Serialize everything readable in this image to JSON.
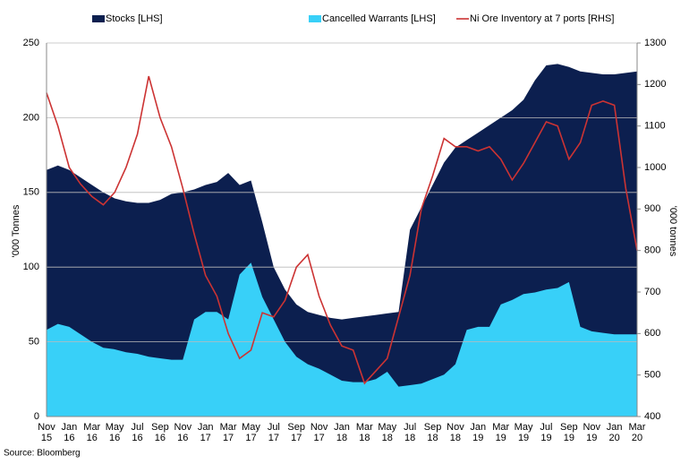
{
  "chart_data": {
    "type": "area_line",
    "categories": [
      "Nov 15",
      null,
      "Jan 16",
      null,
      "Mar 16",
      null,
      "May 16",
      null,
      "Jul 16",
      null,
      "Sep 16",
      null,
      "Nov 16",
      null,
      "Jan 17",
      null,
      "Mar 17",
      null,
      "May 17",
      null,
      "Jul 17",
      null,
      "Sep 17",
      null,
      "Nov 17",
      null,
      "Jan 18",
      null,
      "Mar 18",
      null,
      "May 18",
      null,
      "Jul 18",
      null,
      "Sep 18",
      null,
      "Nov 18",
      null,
      "Jan 19",
      null,
      "Mar 19",
      null,
      "May 19",
      null,
      "Jul 19",
      null,
      "Sep 19",
      null,
      "Nov 19",
      null,
      "Jan 20",
      null,
      "Mar 20"
    ],
    "series": [
      {
        "name": "Stocks [LHS]",
        "color": "#0c1f4f",
        "kind": "area",
        "values": [
          165,
          168,
          165,
          160,
          155,
          150,
          146,
          144,
          143,
          143,
          145,
          149,
          150,
          152,
          155,
          157,
          163,
          155,
          158,
          130,
          100,
          85,
          75,
          70,
          68,
          66,
          65,
          66,
          67,
          68,
          69,
          70,
          125,
          140,
          155,
          170,
          180,
          185,
          190,
          195,
          200,
          205,
          212,
          225,
          235,
          236,
          234,
          231,
          230,
          229,
          229,
          230,
          231
        ]
      },
      {
        "name": "Cancelled Warrants [LHS]",
        "color": "#38d0f8",
        "kind": "area",
        "values": [
          58,
          62,
          60,
          55,
          50,
          46,
          45,
          43,
          42,
          40,
          39,
          38,
          38,
          65,
          70,
          70,
          65,
          95,
          103,
          80,
          65,
          50,
          40,
          35,
          32,
          28,
          24,
          23,
          23,
          25,
          30,
          20,
          21,
          22,
          25,
          28,
          35,
          58,
          60,
          60,
          75,
          78,
          82,
          83,
          85,
          86,
          90,
          60,
          57,
          56,
          55,
          55,
          55
        ]
      },
      {
        "name": "Ni Ore Inventory at 7 ports [RHS]",
        "color": "#cc3333",
        "kind": "line",
        "axis": "y2",
        "values": [
          1180,
          1100,
          1000,
          960,
          930,
          910,
          940,
          1000,
          1080,
          1220,
          1120,
          1050,
          950,
          840,
          740,
          690,
          600,
          540,
          560,
          650,
          640,
          680,
          760,
          790,
          690,
          620,
          570,
          560,
          480,
          510,
          540,
          640,
          740,
          900,
          980,
          1070,
          1050,
          1050,
          1040,
          1050,
          1020,
          970,
          1010,
          1060,
          1110,
          1100,
          1020,
          1060,
          1150,
          1160,
          1150,
          950,
          800
        ]
      }
    ],
    "ylabel": "'000 Tonnes",
    "y2label": "'000 tonnes",
    "ylim": [
      0,
      250
    ],
    "yticks": [
      0,
      50,
      100,
      150,
      200,
      250
    ],
    "y2lim": [
      400,
      1300
    ],
    "y2ticks": [
      400,
      500,
      600,
      700,
      800,
      900,
      1000,
      1100,
      1200,
      1300
    ],
    "grid": true,
    "legend": "top"
  },
  "source": "Source: Bloomberg"
}
